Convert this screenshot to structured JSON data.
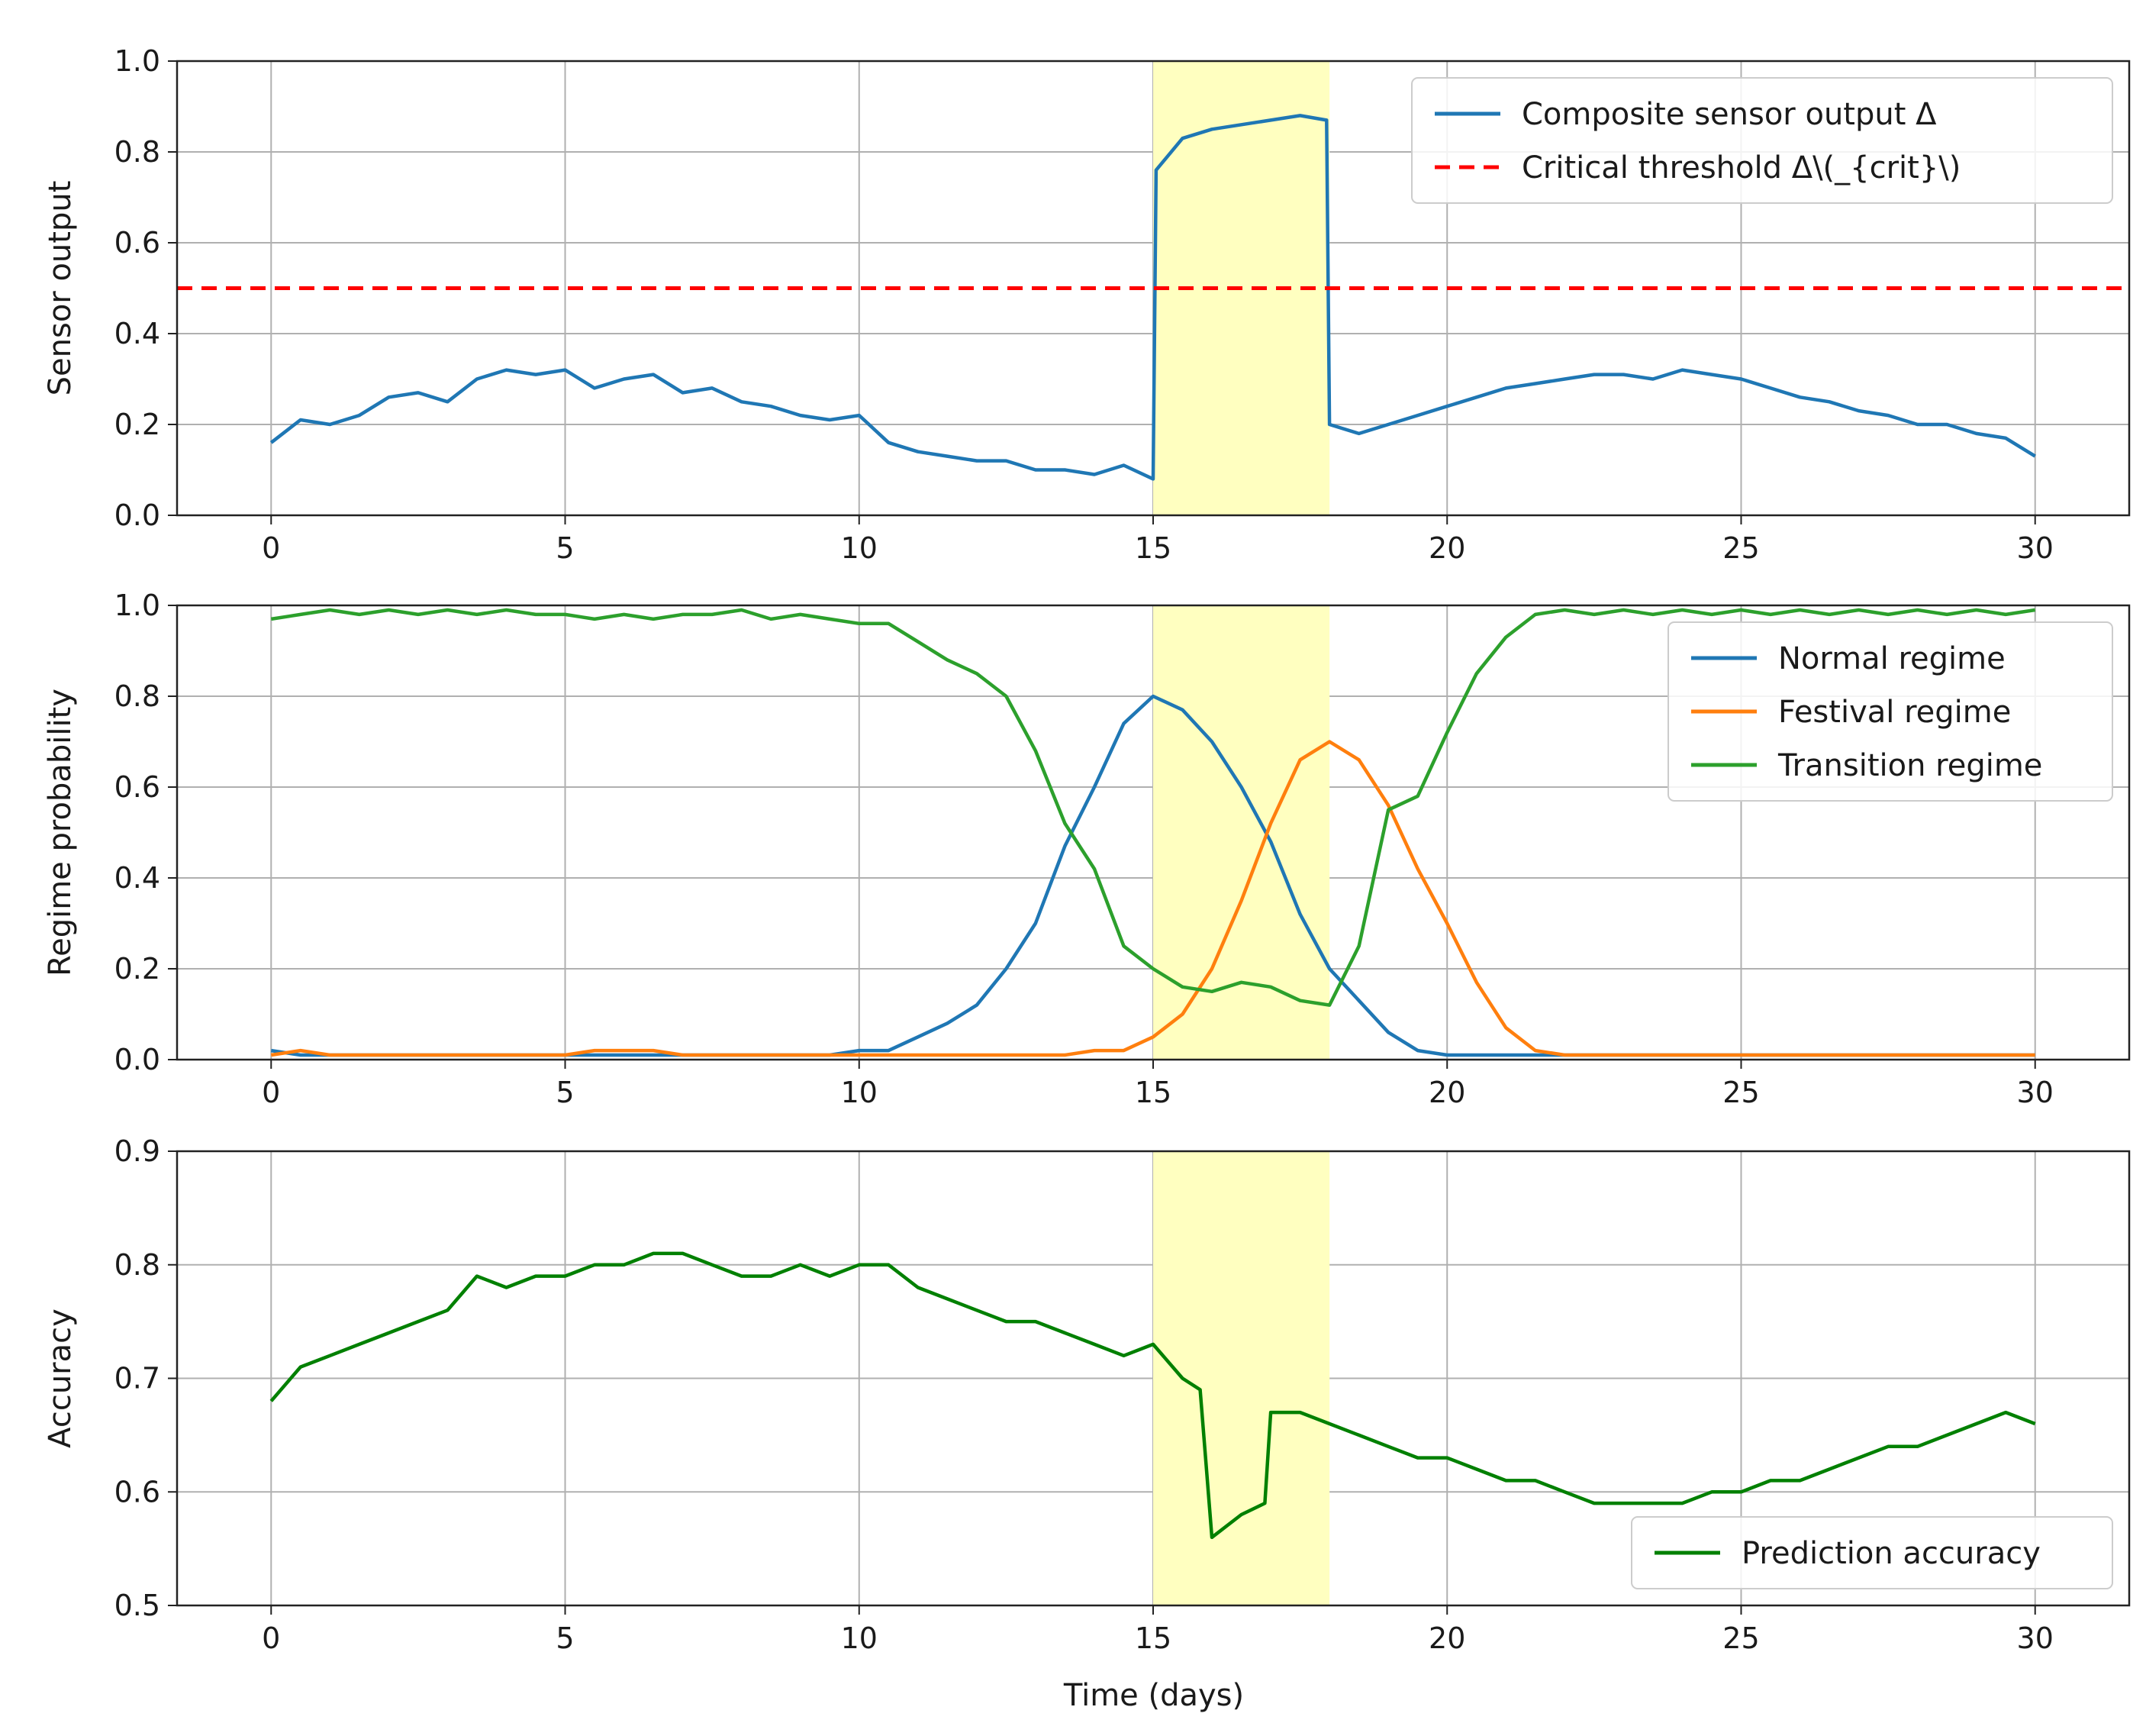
{
  "figure": {
    "xlabel": "Time (days)",
    "x_ticks": [
      0,
      5,
      10,
      15,
      20,
      25,
      30
    ],
    "highlight_window": [
      15,
      18
    ],
    "highlight_color": "#ffffc0"
  },
  "chart_data": [
    {
      "type": "line",
      "xlim": [
        -1.6,
        31.6
      ],
      "ylim": [
        0.0,
        1.0
      ],
      "ylabel": "Sensor output",
      "yticks": [
        "0.0",
        "0.2",
        "0.4",
        "0.6",
        "0.8",
        "1.0"
      ],
      "legend_position": "top-right",
      "x": [
        0,
        0.5,
        1,
        1.5,
        2,
        2.5,
        3,
        3.5,
        4,
        4.5,
        5,
        5.5,
        6,
        6.5,
        7,
        7.5,
        8,
        8.5,
        9,
        9.5,
        10,
        10.5,
        11,
        11.5,
        12,
        12.5,
        13,
        13.5,
        14,
        14.5,
        15,
        15.05,
        15.5,
        16,
        16.5,
        17,
        17.5,
        17.95,
        18,
        18.5,
        19,
        19.5,
        20,
        20.5,
        21,
        21.5,
        22,
        22.5,
        23,
        23.5,
        24,
        24.5,
        25,
        25.5,
        26,
        26.5,
        27,
        27.5,
        28,
        28.5,
        29,
        29.5,
        30
      ],
      "series": [
        {
          "name": "Composite sensor output Δ",
          "color": "#1f77b4",
          "style": "solid",
          "values": [
            0.16,
            0.21,
            0.2,
            0.22,
            0.26,
            0.27,
            0.25,
            0.3,
            0.32,
            0.31,
            0.32,
            0.28,
            0.3,
            0.31,
            0.27,
            0.28,
            0.25,
            0.24,
            0.22,
            0.21,
            0.22,
            0.16,
            0.14,
            0.13,
            0.12,
            0.12,
            0.1,
            0.1,
            0.09,
            0.11,
            0.08,
            0.76,
            0.83,
            0.85,
            0.86,
            0.87,
            0.88,
            0.87,
            0.2,
            0.18,
            0.2,
            0.22,
            0.24,
            0.26,
            0.28,
            0.29,
            0.3,
            0.31,
            0.31,
            0.3,
            0.32,
            0.31,
            0.3,
            0.28,
            0.26,
            0.25,
            0.23,
            0.22,
            0.2,
            0.2,
            0.18,
            0.17,
            0.13
          ]
        },
        {
          "name": "Critical threshold Δ\\(_{crit}\\)",
          "color": "#ff0000",
          "style": "dashed",
          "constant": 0.5
        }
      ]
    },
    {
      "type": "line",
      "xlim": [
        -1.6,
        31.6
      ],
      "ylim": [
        0.0,
        1.0
      ],
      "ylabel": "Regime probability",
      "yticks": [
        "0.0",
        "0.2",
        "0.4",
        "0.6",
        "0.8",
        "1.0"
      ],
      "legend_position": "top-right",
      "x": [
        0,
        0.5,
        1,
        1.5,
        2,
        2.5,
        3,
        3.5,
        4,
        4.5,
        5,
        5.5,
        6,
        6.5,
        7,
        7.5,
        8,
        8.5,
        9,
        9.5,
        10,
        10.5,
        11,
        11.5,
        12,
        12.5,
        13,
        13.5,
        14,
        14.5,
        15,
        15.5,
        16,
        16.5,
        17,
        17.5,
        18,
        18.5,
        19,
        19.5,
        20,
        20.5,
        21,
        21.5,
        22,
        22.5,
        23,
        23.5,
        24,
        24.5,
        25,
        25.5,
        26,
        26.5,
        27,
        27.5,
        28,
        28.5,
        29,
        29.5,
        30
      ],
      "series": [
        {
          "name": "Normal regime",
          "color": "#1f77b4",
          "values": [
            0.02,
            0.01,
            0.01,
            0.01,
            0.01,
            0.01,
            0.01,
            0.01,
            0.01,
            0.01,
            0.01,
            0.01,
            0.01,
            0.01,
            0.01,
            0.01,
            0.01,
            0.01,
            0.01,
            0.01,
            0.02,
            0.02,
            0.05,
            0.08,
            0.12,
            0.2,
            0.3,
            0.47,
            0.6,
            0.74,
            0.8,
            0.77,
            0.7,
            0.6,
            0.48,
            0.32,
            0.2,
            0.13,
            0.06,
            0.02,
            0.01,
            0.01,
            0.01,
            0.01,
            0.01,
            0.01,
            0.01,
            0.01,
            0.01,
            0.01,
            0.01,
            0.01,
            0.01,
            0.01,
            0.01,
            0.01,
            0.01,
            0.01,
            0.01,
            0.01,
            0.01
          ]
        },
        {
          "name": "Festival regime",
          "color": "#ff7f0e",
          "values": [
            0.01,
            0.02,
            0.01,
            0.01,
            0.01,
            0.01,
            0.01,
            0.01,
            0.01,
            0.01,
            0.01,
            0.02,
            0.02,
            0.02,
            0.01,
            0.01,
            0.01,
            0.01,
            0.01,
            0.01,
            0.01,
            0.01,
            0.01,
            0.01,
            0.01,
            0.01,
            0.01,
            0.01,
            0.02,
            0.02,
            0.05,
            0.1,
            0.2,
            0.35,
            0.52,
            0.66,
            0.7,
            0.66,
            0.56,
            0.42,
            0.3,
            0.17,
            0.07,
            0.02,
            0.01,
            0.01,
            0.01,
            0.01,
            0.01,
            0.01,
            0.01,
            0.01,
            0.01,
            0.01,
            0.01,
            0.01,
            0.01,
            0.01,
            0.01,
            0.01,
            0.01
          ]
        },
        {
          "name": "Transition regime",
          "color": "#2ca02c",
          "values": [
            0.97,
            0.98,
            0.99,
            0.98,
            0.99,
            0.98,
            0.99,
            0.98,
            0.99,
            0.98,
            0.98,
            0.97,
            0.98,
            0.97,
            0.98,
            0.98,
            0.99,
            0.97,
            0.98,
            0.97,
            0.96,
            0.96,
            0.92,
            0.88,
            0.85,
            0.8,
            0.68,
            0.52,
            0.42,
            0.25,
            0.2,
            0.16,
            0.15,
            0.17,
            0.16,
            0.13,
            0.12,
            0.25,
            0.55,
            0.58,
            0.72,
            0.85,
            0.93,
            0.98,
            0.99,
            0.98,
            0.99,
            0.98,
            0.99,
            0.98,
            0.99,
            0.98,
            0.99,
            0.98,
            0.99,
            0.98,
            0.99,
            0.98,
            0.99,
            0.98,
            0.99
          ]
        }
      ]
    },
    {
      "type": "line",
      "xlim": [
        -1.6,
        31.6
      ],
      "ylim": [
        0.5,
        0.9
      ],
      "ylabel": "Accuracy",
      "yticks": [
        "0.5",
        "0.6",
        "0.7",
        "0.8",
        "0.9"
      ],
      "legend_position": "bottom-right",
      "x": [
        0,
        0.5,
        1,
        1.5,
        2,
        2.5,
        3,
        3.5,
        4,
        4.5,
        5,
        5.5,
        6,
        6.5,
        7,
        7.5,
        8,
        8.5,
        9,
        9.5,
        10,
        10.5,
        11,
        11.5,
        12,
        12.5,
        13,
        13.5,
        14,
        14.5,
        15,
        15.5,
        15.8,
        16,
        16.5,
        16.9,
        17,
        17.5,
        18,
        18.5,
        19,
        19.5,
        20,
        20.5,
        21,
        21.5,
        22,
        22.5,
        23,
        23.5,
        24,
        24.5,
        25,
        25.5,
        26,
        26.5,
        27,
        27.5,
        28,
        28.5,
        29,
        29.5,
        30
      ],
      "series": [
        {
          "name": "Prediction accuracy",
          "color": "#008000",
          "values": [
            0.68,
            0.71,
            0.72,
            0.73,
            0.74,
            0.75,
            0.76,
            0.79,
            0.78,
            0.79,
            0.79,
            0.8,
            0.8,
            0.81,
            0.81,
            0.8,
            0.79,
            0.79,
            0.8,
            0.79,
            0.8,
            0.8,
            0.78,
            0.77,
            0.76,
            0.75,
            0.75,
            0.74,
            0.73,
            0.72,
            0.73,
            0.7,
            0.69,
            0.56,
            0.58,
            0.59,
            0.67,
            0.67,
            0.66,
            0.65,
            0.64,
            0.63,
            0.63,
            0.62,
            0.61,
            0.61,
            0.6,
            0.59,
            0.59,
            0.59,
            0.59,
            0.6,
            0.6,
            0.61,
            0.61,
            0.62,
            0.63,
            0.64,
            0.64,
            0.65,
            0.66,
            0.67,
            0.66
          ]
        }
      ]
    }
  ]
}
